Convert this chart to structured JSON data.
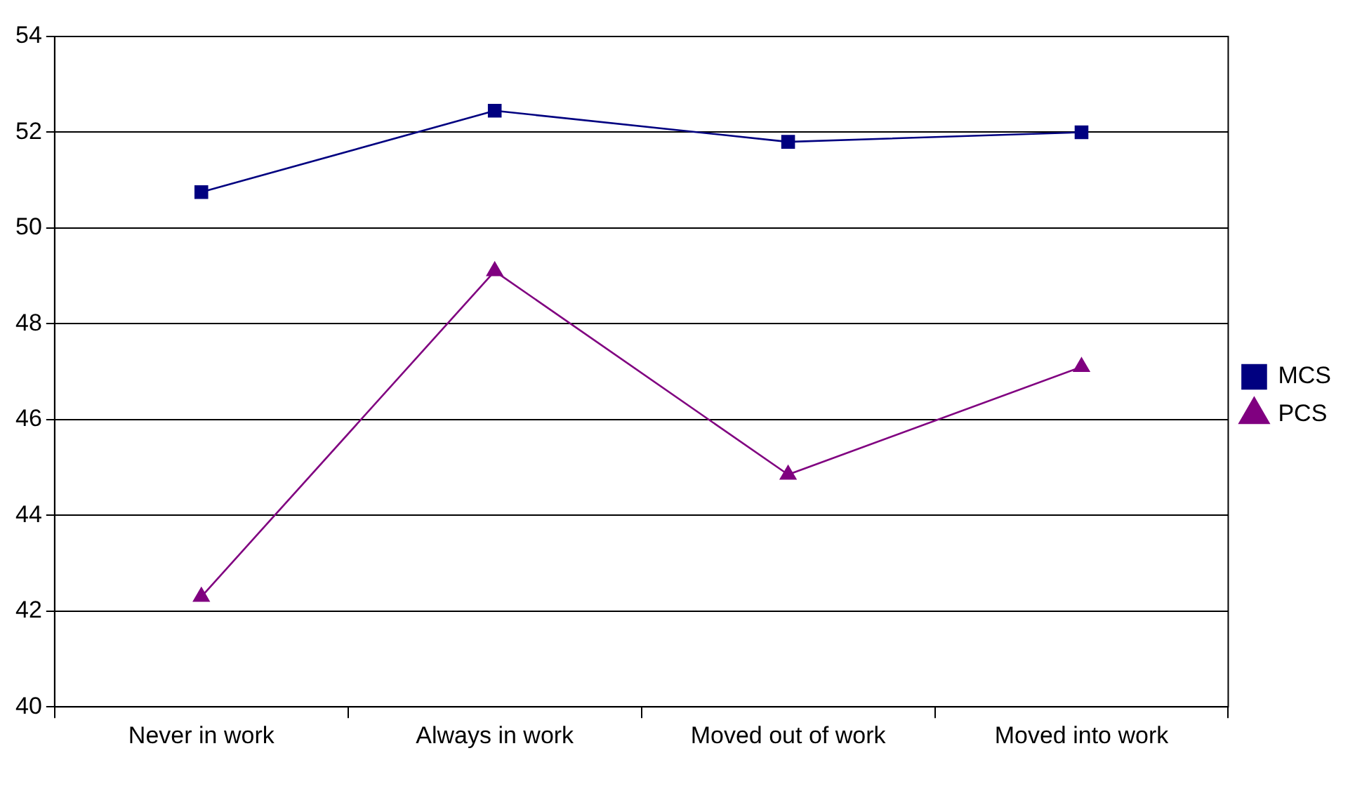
{
  "chart_data": {
    "type": "line",
    "categories": [
      "Never in work",
      "Always in work",
      "Moved out of work",
      "Moved into work"
    ],
    "series": [
      {
        "name": "MCS",
        "color": "#000080",
        "marker": "square",
        "values": [
          50.75,
          52.45,
          51.8,
          52.0
        ]
      },
      {
        "name": "PCS",
        "color": "#800080",
        "marker": "triangle",
        "values": [
          42.3,
          49.1,
          44.85,
          47.1
        ]
      }
    ],
    "ylim": [
      40,
      54
    ],
    "yticks": [
      40,
      42,
      44,
      46,
      48,
      50,
      52,
      54
    ],
    "grid": "y",
    "legend": "right"
  }
}
